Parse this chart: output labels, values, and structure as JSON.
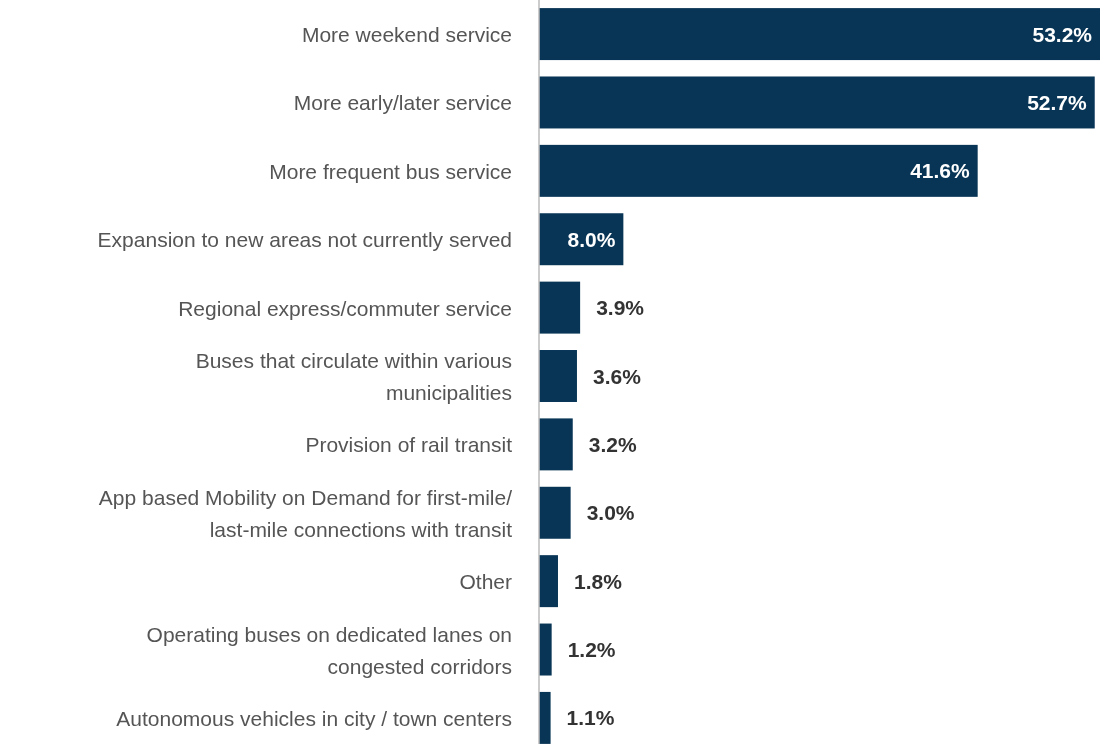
{
  "chart_data": {
    "type": "bar",
    "orientation": "horizontal",
    "data_labels": true,
    "color": "#083555",
    "categories": [
      "More weekend service",
      "More early/later service",
      "More frequent bus service",
      "Expansion to new areas not currently served",
      "Regional express/commuter service",
      "Buses that circulate within various municipalities",
      "Provision of rail transit",
      "App based Mobility on Demand for first-mile/last-mile connections with transit",
      "Other",
      "Operating buses on dedicated lanes on congested corridors",
      "Autonomous vehicles in city / town centers"
    ],
    "values": [
      53.2,
      52.7,
      41.6,
      8.0,
      3.9,
      3.6,
      3.2,
      3.0,
      1.8,
      1.2,
      1.1
    ],
    "value_labels": [
      "53.2%",
      "52.7%",
      "41.6%",
      "8.0%",
      "3.9%",
      "3.6%",
      "3.2%",
      "3.0%",
      "1.8%",
      "1.2%",
      "1.1%"
    ]
  }
}
